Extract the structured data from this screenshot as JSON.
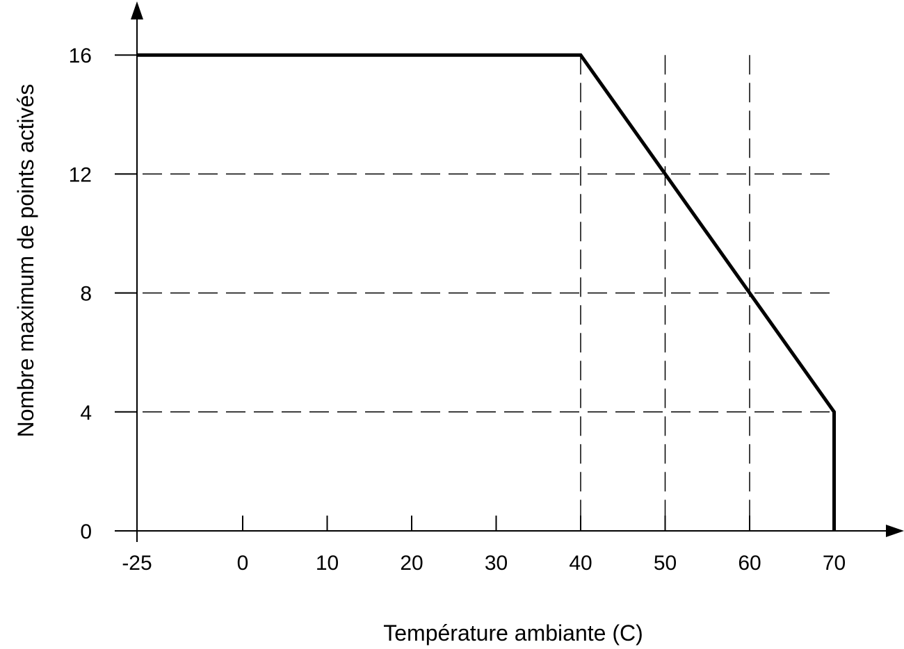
{
  "chart_data": {
    "type": "line",
    "title": "",
    "xlabel": "Température ambiante (C)",
    "ylabel": "Nombre maximum de points activés",
    "x_ticks": [
      -25,
      0,
      10,
      20,
      30,
      40,
      50,
      60,
      70
    ],
    "y_ticks": [
      0,
      4,
      8,
      12,
      16
    ],
    "xlim": [
      -25,
      70
    ],
    "ylim": [
      0,
      16
    ],
    "series": [
      {
        "x": [
          -25,
          40,
          70,
          70
        ],
        "y": [
          16,
          16,
          4,
          0
        ]
      }
    ],
    "reference_lines": {
      "vertical_x": [
        40,
        50,
        60
      ],
      "horizontal_y": [
        12,
        8,
        4
      ]
    },
    "colors": {
      "line": "#000000",
      "grid": "#000000"
    },
    "grid": false,
    "legend": "none"
  }
}
